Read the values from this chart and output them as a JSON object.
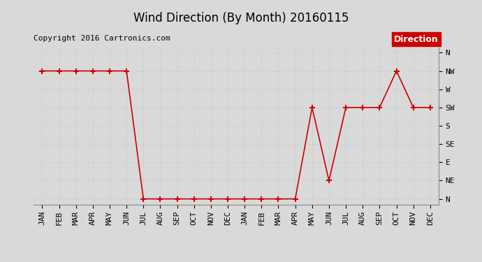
{
  "title": "Wind Direction (By Month) 20160115",
  "copyright": "Copyright 2016 Cartronics.com",
  "x_labels": [
    "JAN",
    "FEB",
    "MAR",
    "APR",
    "MAY",
    "JUN",
    "JUL",
    "AUG",
    "SEP",
    "OCT",
    "NOV",
    "DEC",
    "JAN",
    "FEB",
    "MAR",
    "APR",
    "MAY",
    "JUN",
    "JUL",
    "AUG",
    "SEP",
    "OCT",
    "NOV",
    "DEC"
  ],
  "y_labels": [
    "N",
    "NE",
    "E",
    "SE",
    "S",
    "SW",
    "W",
    "NW",
    "N"
  ],
  "y_values": [
    0,
    1,
    2,
    3,
    4,
    5,
    6,
    7,
    8
  ],
  "direction_data": [
    7,
    7,
    7,
    7,
    7,
    7,
    0,
    0,
    0,
    0,
    0,
    0,
    0,
    0,
    0,
    0,
    5,
    1,
    5,
    5,
    5,
    7,
    5,
    5
  ],
  "line_color": "#cc0000",
  "marker": "+",
  "marker_size": 6,
  "marker_linewidth": 1.5,
  "line_width": 1.2,
  "legend_label": "Direction",
  "legend_bg": "#cc0000",
  "legend_text_color": "#ffffff",
  "grid_color": "#cccccc",
  "bg_color": "#d9d9d9",
  "plot_bg_color": "#d9d9d9",
  "title_fontsize": 12,
  "copyright_fontsize": 8,
  "axis_fontsize": 8,
  "legend_fontsize": 9
}
